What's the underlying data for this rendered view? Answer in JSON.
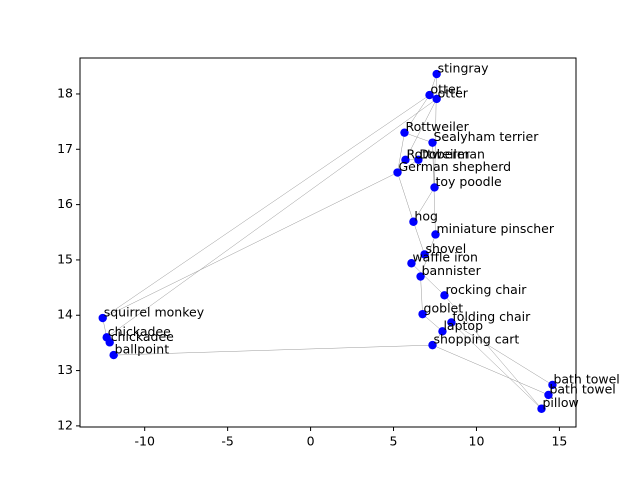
{
  "chart_data": {
    "type": "scatter",
    "color": "#0000ff",
    "edge_color": "#999999",
    "labels": [
      "stingray",
      "otter",
      "otter",
      "Rottweiler",
      "Sealyham terrier",
      "Rottweiler",
      "Doberman",
      "German shepherd",
      "toy poodle",
      "hog",
      "miniature pinscher",
      "shovel",
      "waffle iron",
      "bannister",
      "rocking chair",
      "goblet",
      "folding chair",
      "laptop",
      "shopping cart",
      "squirrel monkey",
      "chickadee",
      "chickadee",
      "ballpoint",
      "bath towel",
      "bath towel",
      "pillow"
    ],
    "x": [
      7.6,
      7.17,
      7.6,
      5.66,
      7.35,
      5.72,
      6.5,
      5.24,
      7.47,
      6.2,
      7.53,
      6.87,
      6.08,
      6.63,
      8.07,
      6.75,
      8.49,
      7.95,
      7.35,
      -12.53,
      -12.29,
      -12.11,
      -11.87,
      14.58,
      14.34,
      13.92
    ],
    "y": [
      18.36,
      17.98,
      17.91,
      17.3,
      17.12,
      16.81,
      16.81,
      16.58,
      16.31,
      15.69,
      15.46,
      15.1,
      14.94,
      14.7,
      14.36,
      14.02,
      13.87,
      13.71,
      13.46,
      13.95,
      13.6,
      13.51,
      13.28,
      12.74,
      12.56,
      12.31
    ],
    "edges": [
      [
        19,
        1
      ],
      [
        19,
        7
      ],
      [
        20,
        2
      ],
      [
        22,
        18
      ],
      [
        19,
        20
      ],
      [
        20,
        21
      ],
      [
        1,
        0
      ],
      [
        1,
        3
      ],
      [
        2,
        5
      ],
      [
        3,
        4
      ],
      [
        5,
        6
      ],
      [
        6,
        7
      ],
      [
        4,
        8
      ],
      [
        8,
        9
      ],
      [
        7,
        9
      ],
      [
        9,
        11
      ],
      [
        10,
        4
      ],
      [
        10,
        13
      ],
      [
        11,
        12
      ],
      [
        12,
        14
      ],
      [
        13,
        15
      ],
      [
        14,
        25
      ],
      [
        15,
        17
      ],
      [
        16,
        23
      ],
      [
        17,
        18
      ],
      [
        18,
        24
      ],
      [
        23,
        24
      ],
      [
        24,
        25
      ],
      [
        16,
        25
      ],
      [
        3,
        7
      ],
      [
        0,
        8
      ]
    ],
    "xlim": [
      -13.9,
      16
    ],
    "ylim": [
      11.98,
      18.65
    ],
    "xticks": [
      -10,
      -5,
      0,
      5,
      10,
      15
    ],
    "yticks": [
      12,
      13,
      14,
      15,
      16,
      17,
      18
    ]
  }
}
